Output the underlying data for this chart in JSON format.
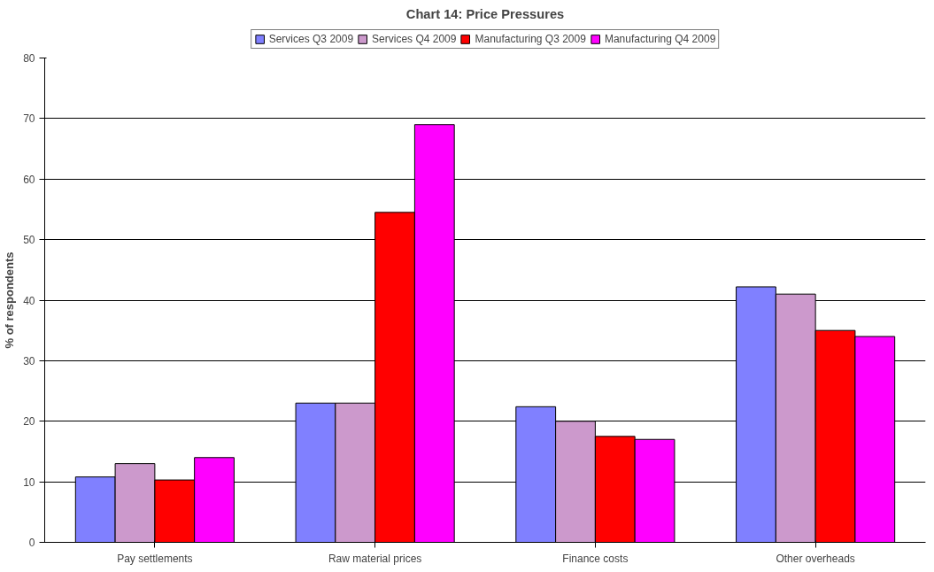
{
  "chart_data": {
    "type": "bar",
    "title": "Chart 14: Price Pressures",
    "ylabel": "% of respondents",
    "categories": [
      "Pay settlements",
      "Raw material prices",
      "Finance costs",
      "Other overheads"
    ],
    "series": [
      {
        "name": "Services Q3 2009",
        "color": "#8080ff",
        "values": [
          10.8,
          23.0,
          22.4,
          42.2
        ]
      },
      {
        "name": "Services Q4 2009",
        "color": "#cc99cc",
        "values": [
          13.0,
          23.0,
          20.0,
          41.0
        ]
      },
      {
        "name": "Manufacturing Q3 2009",
        "color": "#ff0000",
        "values": [
          10.3,
          54.5,
          17.5,
          35.0
        ]
      },
      {
        "name": "Manufacturing Q4 2009",
        "color": "#ff00ff",
        "values": [
          14.0,
          69.0,
          17.0,
          34.0
        ]
      }
    ],
    "ylim": [
      0,
      80
    ],
    "yticks": [
      0,
      10,
      20,
      30,
      40,
      50,
      60,
      70,
      80
    ],
    "grid": "y",
    "legend": "top"
  }
}
